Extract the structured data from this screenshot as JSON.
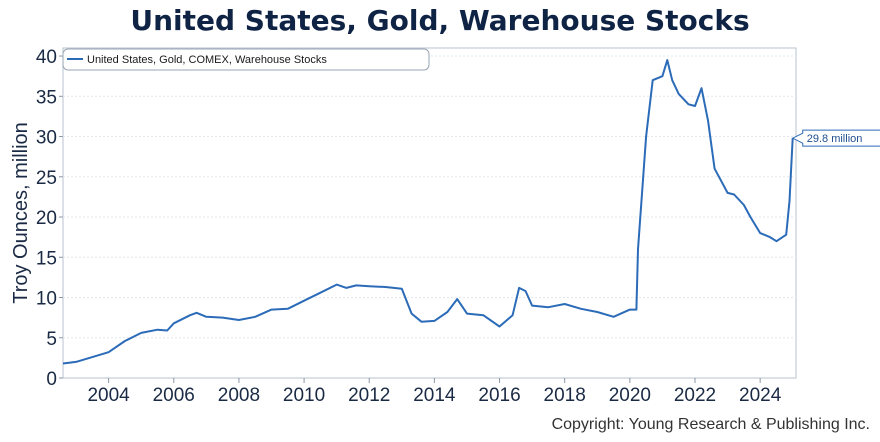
{
  "title": "United States, Gold, Warehouse Stocks",
  "copyright": "Copyright: Young Research & Publishing Inc.",
  "chart_data": {
    "type": "line",
    "title": "United States, Gold, Warehouse Stocks",
    "ylabel": "Troy Ounces, million",
    "xlabel": "",
    "xlim": [
      2002.6,
      2025.1
    ],
    "ylim": [
      0,
      41
    ],
    "x_ticks": [
      2004,
      2006,
      2008,
      2010,
      2012,
      2014,
      2016,
      2018,
      2020,
      2022,
      2024
    ],
    "y_ticks": [
      0,
      5,
      10,
      15,
      20,
      25,
      30,
      35,
      40
    ],
    "grid": true,
    "legend_position": "top-left",
    "line_color": "#2b6bb8",
    "series": [
      {
        "name": "United States, Gold, COMEX, Warehouse Stocks",
        "points": [
          [
            2002.6,
            1.8
          ],
          [
            2003.0,
            2.0
          ],
          [
            2003.5,
            2.6
          ],
          [
            2004.0,
            3.2
          ],
          [
            2004.5,
            4.6
          ],
          [
            2005.0,
            5.6
          ],
          [
            2005.5,
            6.0
          ],
          [
            2005.8,
            5.9
          ],
          [
            2006.0,
            6.8
          ],
          [
            2006.5,
            7.8
          ],
          [
            2006.7,
            8.1
          ],
          [
            2007.0,
            7.6
          ],
          [
            2007.5,
            7.5
          ],
          [
            2008.0,
            7.2
          ],
          [
            2008.5,
            7.6
          ],
          [
            2009.0,
            8.5
          ],
          [
            2009.5,
            8.6
          ],
          [
            2010.0,
            9.6
          ],
          [
            2010.5,
            10.6
          ],
          [
            2011.0,
            11.6
          ],
          [
            2011.3,
            11.2
          ],
          [
            2011.6,
            11.5
          ],
          [
            2012.0,
            11.4
          ],
          [
            2012.5,
            11.3
          ],
          [
            2013.0,
            11.1
          ],
          [
            2013.3,
            8.0
          ],
          [
            2013.6,
            7.0
          ],
          [
            2014.0,
            7.1
          ],
          [
            2014.4,
            8.2
          ],
          [
            2014.7,
            9.8
          ],
          [
            2015.0,
            8.0
          ],
          [
            2015.5,
            7.8
          ],
          [
            2016.0,
            6.4
          ],
          [
            2016.4,
            7.8
          ],
          [
            2016.6,
            11.2
          ],
          [
            2016.8,
            10.8
          ],
          [
            2017.0,
            9.0
          ],
          [
            2017.5,
            8.8
          ],
          [
            2018.0,
            9.2
          ],
          [
            2018.5,
            8.6
          ],
          [
            2019.0,
            8.2
          ],
          [
            2019.5,
            7.6
          ],
          [
            2020.0,
            8.5
          ],
          [
            2020.2,
            8.5
          ],
          [
            2020.25,
            16.0
          ],
          [
            2020.5,
            30.0
          ],
          [
            2020.7,
            37.0
          ],
          [
            2021.0,
            37.5
          ],
          [
            2021.15,
            39.5
          ],
          [
            2021.3,
            37.0
          ],
          [
            2021.5,
            35.3
          ],
          [
            2021.8,
            34.0
          ],
          [
            2022.0,
            33.8
          ],
          [
            2022.2,
            36.0
          ],
          [
            2022.4,
            32.0
          ],
          [
            2022.6,
            26.0
          ],
          [
            2023.0,
            23.0
          ],
          [
            2023.2,
            22.8
          ],
          [
            2023.5,
            21.5
          ],
          [
            2023.7,
            20.0
          ],
          [
            2024.0,
            18.0
          ],
          [
            2024.3,
            17.5
          ],
          [
            2024.5,
            17.0
          ],
          [
            2024.8,
            17.8
          ],
          [
            2024.9,
            22.0
          ],
          [
            2025.0,
            29.8
          ]
        ]
      }
    ],
    "last_value_label": "29.8 million"
  }
}
